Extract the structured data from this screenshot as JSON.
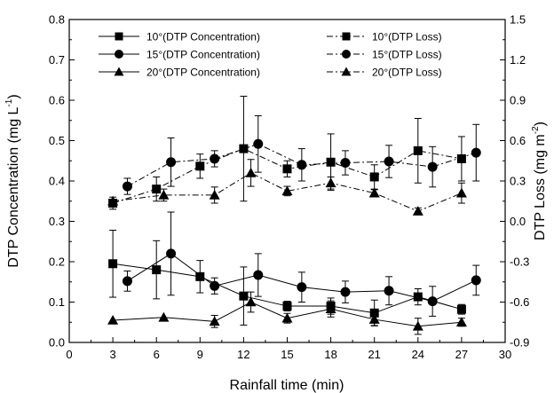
{
  "chart_data": {
    "type": "line",
    "xlabel": "Rainfall time (min)",
    "ylabel_left_main": "DTP Concentration (mg L",
    "ylabel_left_sup": "-1",
    "ylabel_left_end": ")",
    "ylabel_right_main": "DTP Loss (mg m",
    "ylabel_right_sup": "-2",
    "ylabel_right_end": ")",
    "xlim": [
      0,
      30
    ],
    "ylim_left": [
      0.0,
      0.8
    ],
    "ylim_right": [
      -0.9,
      1.5
    ],
    "xticks": [
      "0",
      "3",
      "6",
      "9",
      "12",
      "15",
      "18",
      "21",
      "24",
      "27",
      "30"
    ],
    "yticks_left": [
      "0.0",
      "0.1",
      "0.2",
      "0.3",
      "0.4",
      "0.5",
      "0.6",
      "0.7",
      "0.8"
    ],
    "yticks_right": [
      "-0.9",
      "-0.6",
      "-0.3",
      "0.0",
      "0.3",
      "0.6",
      "0.9",
      "1.2",
      "1.5"
    ],
    "grid": false,
    "legend_position": "top",
    "series": [
      {
        "name": "10°(DTP Concentration)",
        "axis": "left",
        "marker": "square",
        "line": "solid",
        "points": [
          {
            "x": 3,
            "y": 0.195,
            "err": 0.083
          },
          {
            "x": 6,
            "y": 0.18,
            "err": 0.072
          },
          {
            "x": 9,
            "y": 0.163,
            "err": 0.04
          },
          {
            "x": 12,
            "y": 0.115,
            "err": 0.072
          },
          {
            "x": 15,
            "y": 0.09,
            "err": 0.012
          },
          {
            "x": 18,
            "y": 0.09,
            "err": 0.02
          },
          {
            "x": 21,
            "y": 0.073,
            "err": 0.032
          },
          {
            "x": 24,
            "y": 0.113,
            "err": 0.02
          },
          {
            "x": 27,
            "y": 0.082,
            "err": 0.012
          }
        ]
      },
      {
        "name": "15°(DTP Concentration)",
        "axis": "left",
        "marker": "circle",
        "line": "solid",
        "points": [
          {
            "x": 4,
            "y": 0.152,
            "err": 0.025
          },
          {
            "x": 7,
            "y": 0.22,
            "err": 0.103
          },
          {
            "x": 10,
            "y": 0.14,
            "err": 0.02
          },
          {
            "x": 13,
            "y": 0.167,
            "err": 0.053
          },
          {
            "x": 16,
            "y": 0.137,
            "err": 0.037
          },
          {
            "x": 19,
            "y": 0.125,
            "err": 0.027
          },
          {
            "x": 22,
            "y": 0.128,
            "err": 0.035
          },
          {
            "x": 25,
            "y": 0.102,
            "err": 0.037
          },
          {
            "x": 28,
            "y": 0.154,
            "err": 0.037
          }
        ]
      },
      {
        "name": "20°(DTP Concentration)",
        "axis": "left",
        "marker": "triangle",
        "line": "solid",
        "points": [
          {
            "x": 3,
            "y": 0.055,
            "err": 0
          },
          {
            "x": 6.5,
            "y": 0.062,
            "err": 0
          },
          {
            "x": 10,
            "y": 0.052,
            "err": 0.015
          },
          {
            "x": 12.5,
            "y": 0.1,
            "err": 0.025
          },
          {
            "x": 15,
            "y": 0.06,
            "err": 0.012
          },
          {
            "x": 18,
            "y": 0.083,
            "err": 0.02
          },
          {
            "x": 21,
            "y": 0.057,
            "err": 0.015
          },
          {
            "x": 24,
            "y": 0.04,
            "err": 0.02
          },
          {
            "x": 27,
            "y": 0.05,
            "err": 0.01
          }
        ]
      },
      {
        "name": "10°(DTP Loss)",
        "axis": "right",
        "marker": "square",
        "line": "dashdot",
        "points": [
          {
            "x": 3,
            "y": 0.135,
            "err": 0.045
          },
          {
            "x": 6,
            "y": 0.24,
            "err": 0.09
          },
          {
            "x": 9,
            "y": 0.41,
            "err": 0.09
          },
          {
            "x": 12,
            "y": 0.54,
            "err": 0.39
          },
          {
            "x": 15,
            "y": 0.39,
            "err": 0.06
          },
          {
            "x": 18,
            "y": 0.44,
            "err": 0.21
          },
          {
            "x": 21,
            "y": 0.33,
            "err": 0.09
          },
          {
            "x": 24,
            "y": 0.525,
            "err": 0.24
          },
          {
            "x": 27,
            "y": 0.465,
            "err": 0.165
          }
        ]
      },
      {
        "name": "15°(DTP Loss)",
        "axis": "right",
        "marker": "circle",
        "line": "dashdot",
        "points": [
          {
            "x": 4,
            "y": 0.26,
            "err": 0.06
          },
          {
            "x": 7,
            "y": 0.44,
            "err": 0.18
          },
          {
            "x": 10,
            "y": 0.465,
            "err": 0.06
          },
          {
            "x": 13,
            "y": 0.575,
            "err": 0.21
          },
          {
            "x": 16,
            "y": 0.42,
            "err": 0.12
          },
          {
            "x": 19,
            "y": 0.435,
            "err": 0.09
          },
          {
            "x": 22,
            "y": 0.445,
            "err": 0.12
          },
          {
            "x": 25,
            "y": 0.405,
            "err": 0.15
          },
          {
            "x": 28,
            "y": 0.51,
            "err": 0.21
          }
        ]
      },
      {
        "name": "20°(DTP Loss)",
        "axis": "right",
        "marker": "triangle",
        "line": "dashdot",
        "points": [
          {
            "x": 3,
            "y": 0.15,
            "err": 0
          },
          {
            "x": 6.5,
            "y": 0.195,
            "err": 0.045
          },
          {
            "x": 10,
            "y": 0.195,
            "err": 0.06
          },
          {
            "x": 12.5,
            "y": 0.36,
            "err": 0.1
          },
          {
            "x": 15,
            "y": 0.225,
            "err": 0.035
          },
          {
            "x": 18,
            "y": 0.285,
            "err": 0.045
          },
          {
            "x": 21,
            "y": 0.21,
            "err": 0.025
          },
          {
            "x": 24,
            "y": 0.075,
            "err": 0.025
          },
          {
            "x": 27,
            "y": 0.21,
            "err": 0.075
          }
        ]
      }
    ]
  }
}
